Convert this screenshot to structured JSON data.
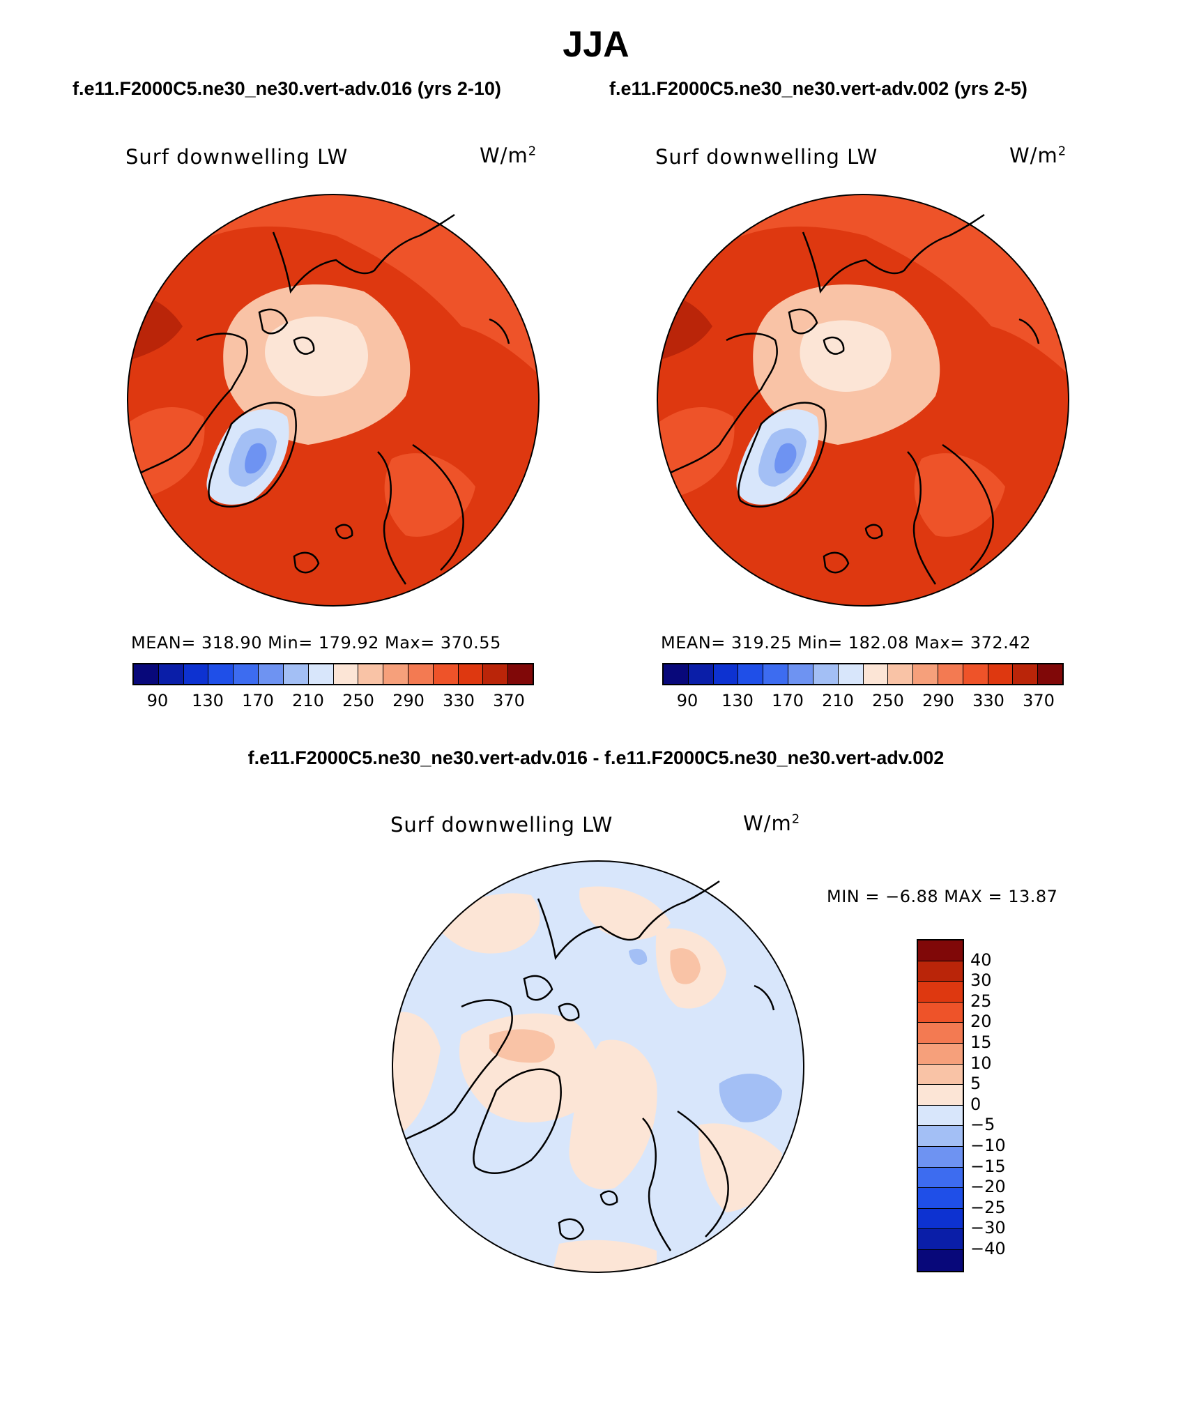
{
  "figure": {
    "season": "JJA",
    "case_a_title": "f.e11.F2000C5.ne30_ne30.vert-adv.016 (yrs 2-10)",
    "case_b_title": "f.e11.F2000C5.ne30_ne30.vert-adv.002 (yrs 2-5)",
    "diff_title": "f.e11.F2000C5.ne30_ne30.vert-adv.016 - f.e11.F2000C5.ne30_ne30.vert-adv.002"
  },
  "panels": {
    "a": {
      "field": "Surf downwelling LW",
      "units": "W/m",
      "units_sup": "2",
      "stats_text": "MEAN= 318.90   Min= 179.92   Max= 370.55"
    },
    "b": {
      "field": "Surf downwelling LW",
      "units": "W/m",
      "units_sup": "2",
      "stats_text": "MEAN= 319.25   Min= 182.08   Max= 372.42"
    },
    "diff": {
      "field": "Surf downwelling LW",
      "units": "W/m",
      "units_sup": "2",
      "minmax_text": "MIN =   −6.88 MAX =   13.87"
    }
  },
  "colorbars": {
    "abs": {
      "colors": [
        "#08087a",
        "#0a1ea8",
        "#0d32d1",
        "#1f4fe8",
        "#3d6cf0",
        "#6e93f2",
        "#a3bff5",
        "#d8e6fb",
        "#fce5d6",
        "#f9c3a6",
        "#f6a07b",
        "#f37a52",
        "#ee5329",
        "#de3810",
        "#ba2509",
        "#800808"
      ],
      "ticks": [
        "90",
        "130",
        "170",
        "210",
        "250",
        "290",
        "330",
        "370"
      ]
    },
    "diff": {
      "colors": [
        "#800808",
        "#ba2509",
        "#de3810",
        "#ee5329",
        "#f37a52",
        "#f6a07b",
        "#f9c3a6",
        "#fce5d6",
        "#d8e6fb",
        "#a3bff5",
        "#6e93f2",
        "#3d6cf0",
        "#1f4fe8",
        "#0d32d1",
        "#0a1ea8",
        "#08087a"
      ],
      "ticks": [
        "40",
        "30",
        "25",
        "20",
        "15",
        "10",
        "5",
        "0",
        "−5",
        "−10",
        "−15",
        "−20",
        "−25",
        "−30",
        "−40"
      ]
    }
  }
}
